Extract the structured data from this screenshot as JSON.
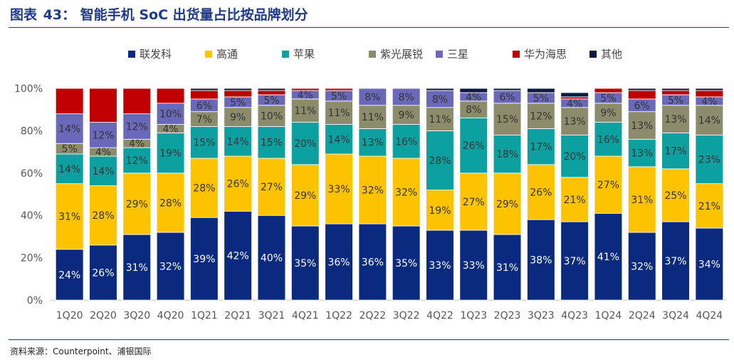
{
  "header": {
    "figure_label": "图表",
    "figure_number": "43：",
    "title": "智能手机 SoC 出货量占比按品牌划分"
  },
  "footer": {
    "source": "资料来源：Counterpoint、浦银国际"
  },
  "colors": {
    "联发科": "#0a2a80",
    "高通": "#fdc300",
    "苹果": "#0ca1a0",
    "紫光展锐": "#8c8c6c",
    "三星": "#6a68b8",
    "华为海思": "#c00000",
    "其他": "#0d1b3e",
    "title": "#1f3a8a"
  },
  "chart_data": {
    "type": "bar",
    "stacked": true,
    "title": "智能手机 SoC 出货量占比按品牌划分",
    "xlabel": "",
    "ylabel": "",
    "ylim": [
      0,
      100
    ],
    "yticks": [
      "0%",
      "20%",
      "40%",
      "60%",
      "80%",
      "100%"
    ],
    "legend_position": "top",
    "grid": false,
    "categories": [
      "1Q20",
      "2Q20",
      "3Q20",
      "4Q20",
      "1Q21",
      "2Q21",
      "3Q21",
      "4Q21",
      "1Q22",
      "2Q22",
      "3Q22",
      "4Q22",
      "1Q23",
      "2Q23",
      "3Q23",
      "4Q23",
      "1Q24",
      "2Q24",
      "3Q24",
      "4Q24"
    ],
    "series": [
      {
        "name": "联发科",
        "values": [
          24,
          26,
          31,
          32,
          39,
          42,
          40,
          35,
          36,
          36,
          35,
          33,
          33,
          31,
          38,
          37,
          41,
          32,
          37,
          34
        ],
        "labels": [
          "24%",
          "26%",
          "31%",
          "32%",
          "39%",
          "42%",
          "40%",
          "35%",
          "36%",
          "36%",
          "35%",
          "33%",
          "33%",
          "31%",
          "38%",
          "37%",
          "41%",
          "32%",
          "37%",
          "34%"
        ]
      },
      {
        "name": "高通",
        "values": [
          31,
          28,
          29,
          28,
          28,
          26,
          27,
          29,
          33,
          32,
          32,
          19,
          27,
          29,
          26,
          21,
          27,
          31,
          25,
          21
        ],
        "labels": [
          "31%",
          "28%",
          "29%",
          "28%",
          "28%",
          "26%",
          "27%",
          "29%",
          "33%",
          "32%",
          "32%",
          "19%",
          "27%",
          "29%",
          "26%",
          "21%",
          "27%",
          "31%",
          "25%",
          "21%"
        ]
      },
      {
        "name": "苹果",
        "values": [
          14,
          14,
          12,
          19,
          15,
          14,
          15,
          20,
          14,
          13,
          16,
          28,
          26,
          18,
          17,
          20,
          16,
          13,
          17,
          23
        ],
        "labels": [
          "14%",
          "14%",
          "12%",
          "19%",
          "15%",
          "14%",
          "15%",
          "20%",
          "14%",
          "13%",
          "16%",
          "28%",
          "26%",
          "18%",
          "17%",
          "20%",
          "16%",
          "13%",
          "17%",
          "23%"
        ]
      },
      {
        "name": "紫光展锐",
        "values": [
          5,
          4,
          4,
          4,
          7,
          9,
          10,
          11,
          11,
          11,
          9,
          11,
          8,
          15,
          12,
          13,
          9,
          13,
          13,
          14
        ],
        "labels": [
          "5%",
          "4%",
          "4%",
          "4%",
          "7%",
          "9%",
          "10%",
          "11%",
          "11%",
          "11%",
          "9%",
          "11%",
          "8%",
          "15%",
          "12%",
          "13%",
          "9%",
          "13%",
          "13%",
          "14%"
        ]
      },
      {
        "name": "三星",
        "values": [
          14,
          12,
          12,
          10,
          6,
          5,
          5,
          4,
          5,
          8,
          8,
          8,
          4,
          6,
          5,
          4,
          5,
          6,
          5,
          4
        ],
        "labels": [
          "14%",
          "12%",
          "12%",
          "10%",
          "6%",
          "5%",
          "5%",
          "4%",
          "5%",
          "8%",
          "8%",
          "8%",
          "4%",
          "6%",
          "5%",
          "4%",
          "5%",
          "6%",
          "5%",
          "4%"
        ]
      },
      {
        "name": "华为海思",
        "values": [
          12,
          16,
          12,
          7,
          4,
          3,
          2,
          1,
          1,
          0,
          0,
          0,
          0,
          0,
          0,
          1,
          2,
          4,
          2,
          3
        ],
        "labels": [
          "",
          "",
          "",
          "",
          "",
          "",
          "",
          "",
          "",
          "",
          "",
          "",
          "",
          "",
          "",
          "",
          "",
          "",
          "",
          ""
        ]
      },
      {
        "name": "其他",
        "values": [
          0,
          0,
          0,
          0,
          1,
          1,
          1,
          0,
          0,
          0,
          0,
          1,
          2,
          1,
          2,
          2,
          0,
          1,
          1,
          1
        ],
        "labels": [
          "",
          "",
          "",
          "",
          "",
          "",
          "",
          "",
          "",
          "",
          "",
          "",
          "",
          "",
          "",
          "",
          "",
          "",
          "",
          ""
        ]
      }
    ]
  }
}
